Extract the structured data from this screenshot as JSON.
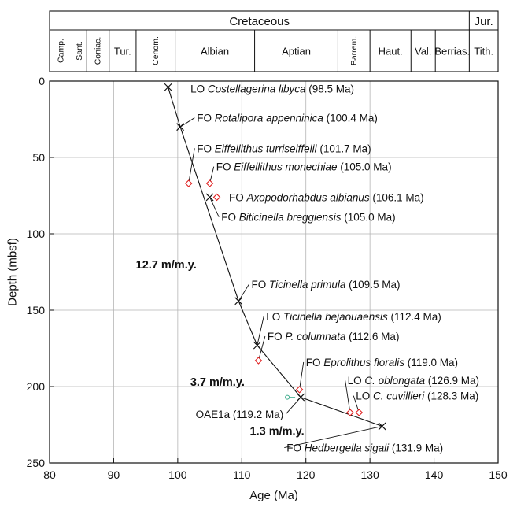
{
  "chart_data": {
    "type": "scatter",
    "xlabel": "Age (Ma)",
    "ylabel": "Depth (mbsf)",
    "xlim": [
      80,
      150
    ],
    "ylim": [
      0,
      250
    ],
    "y_inverted": true,
    "grid": true,
    "xticks": [
      80,
      90,
      100,
      110,
      120,
      130,
      140,
      150
    ],
    "yticks": [
      0,
      50,
      100,
      150,
      200,
      250
    ],
    "stratigraphy": {
      "periods": [
        {
          "label": "Cretaceous",
          "from": 80,
          "to": 145.5
        },
        {
          "label": "Jur.",
          "from": 145.5,
          "to": 150
        }
      ],
      "stages": [
        {
          "label": "Camp.",
          "from": 80,
          "to": 83.5,
          "vertical": true
        },
        {
          "label": "Sant.",
          "from": 83.5,
          "to": 85.8,
          "vertical": true
        },
        {
          "label": "Coniac.",
          "from": 85.8,
          "to": 89.3,
          "vertical": true
        },
        {
          "label": "Tur.",
          "from": 89.3,
          "to": 93.5,
          "vertical": false
        },
        {
          "label": "Cenom.",
          "from": 93.5,
          "to": 99.6,
          "vertical": true
        },
        {
          "label": "Albian",
          "from": 99.6,
          "to": 112,
          "vertical": false
        },
        {
          "label": "Aptian",
          "from": 112,
          "to": 125,
          "vertical": false
        },
        {
          "label": "Barrem.",
          "from": 125,
          "to": 130,
          "vertical": true
        },
        {
          "label": "Haut.",
          "from": 130,
          "to": 136.4,
          "vertical": false
        },
        {
          "label": "Val.",
          "from": 136.4,
          "to": 140.2,
          "vertical": false
        },
        {
          "label": "Berrias.",
          "from": 140.2,
          "to": 145.5,
          "vertical": false
        },
        {
          "label": "Tith.",
          "from": 145.5,
          "to": 150,
          "vertical": false
        }
      ]
    },
    "age_depth_line": [
      {
        "x": 98.5,
        "y": 4
      },
      {
        "x": 100.4,
        "y": 30
      },
      {
        "x": 109.5,
        "y": 144
      },
      {
        "x": 112.4,
        "y": 173
      },
      {
        "x": 119.2,
        "y": 207
      },
      {
        "x": 131.9,
        "y": 226
      }
    ],
    "points": [
      {
        "marker": "cross",
        "color": "#111111",
        "x": 98.5,
        "y": 4,
        "prefix": "LO ",
        "name": "Costellagerina libyca",
        "suffix": " (98.5 Ma)",
        "lx": 102,
        "ly": 5,
        "leader": false
      },
      {
        "marker": "cross",
        "color": "#111111",
        "x": 100.4,
        "y": 30,
        "prefix": "FO ",
        "name": "Rotalipora appenninica",
        "suffix": " (100.4 Ma)",
        "lx": 103,
        "ly": 24,
        "leader": true
      },
      {
        "marker": "diamond",
        "color": "#e02020",
        "x": 101.7,
        "y": 67,
        "prefix": "FO ",
        "name": "Eiffellithus turriseiffelii",
        "suffix": " (101.7 Ma)",
        "lx": 103,
        "ly": 44,
        "leader": true
      },
      {
        "marker": "diamond",
        "color": "#e02020",
        "x": 105.0,
        "y": 67,
        "prefix": "FO ",
        "name": "Eiffellithus monechiae",
        "suffix": " (105.0 Ma)",
        "lx": 106,
        "ly": 56,
        "leader": true
      },
      {
        "marker": "diamond",
        "color": "#e02020",
        "x": 106.1,
        "y": 76,
        "prefix": "FO ",
        "name": "Axopodorhabdus albianus",
        "suffix": " (106.1 Ma)",
        "lx": 108,
        "ly": 76,
        "leader": false
      },
      {
        "marker": "cross",
        "color": "#111111",
        "x": 105.0,
        "y": 76,
        "prefix": "FO ",
        "name": "Biticinella breggiensis",
        "suffix": " (105.0 Ma)",
        "lx": 106.8,
        "ly": 89,
        "leader": true
      },
      {
        "marker": "cross",
        "color": "#111111",
        "x": 109.5,
        "y": 144,
        "prefix": "FO ",
        "name": "Ticinella primula",
        "suffix": " (109.5 Ma)",
        "lx": 111.5,
        "ly": 133,
        "leader": true
      },
      {
        "marker": "cross",
        "color": "#111111",
        "x": 112.4,
        "y": 173,
        "prefix": "LO ",
        "name": "Ticinella bejaouaensis",
        "suffix": " (112.4 Ma)",
        "lx": 113.8,
        "ly": 154,
        "leader": true
      },
      {
        "marker": "diamond",
        "color": "#e02020",
        "x": 112.6,
        "y": 183,
        "prefix": "FO ",
        "name": "P. columnata",
        "suffix": " (112.6 Ma)",
        "lx": 114,
        "ly": 167,
        "leader": true
      },
      {
        "marker": "diamond",
        "color": "#e02020",
        "x": 119.0,
        "y": 202,
        "prefix": "FO ",
        "name": "Eprolithus floralis",
        "suffix": " (119.0 Ma)",
        "lx": 120,
        "ly": 184,
        "leader": true
      },
      {
        "marker": "diamond",
        "color": "#e02020",
        "x": 126.9,
        "y": 217,
        "prefix": "LO ",
        "name": "C. oblongata",
        "suffix": " (126.9 Ma)",
        "lx": 126.5,
        "ly": 196,
        "leader": true
      },
      {
        "marker": "diamond",
        "color": "#e02020",
        "x": 128.3,
        "y": 217,
        "prefix": "LO ",
        "name": "C. cuvillieri",
        "suffix": " (128.3 Ma)",
        "lx": 127.8,
        "ly": 206,
        "leader": true
      },
      {
        "marker": "circle",
        "color": "#3aaa8a",
        "x": 117.1,
        "y": 207,
        "prefix": "",
        "name": "",
        "suffix": "",
        "lx": 0,
        "ly": 0,
        "leader": false
      },
      {
        "marker": "cross",
        "color": "#111111",
        "x": 119.2,
        "y": 207,
        "prefix": "",
        "name": "OAE1a",
        "suffix": " (119.2 Ma)",
        "lx": 116.5,
        "ly": 218,
        "leader": true,
        "plain": true,
        "anchor": "end"
      },
      {
        "marker": "cross",
        "color": "#111111",
        "x": 131.9,
        "y": 226,
        "prefix": "FO ",
        "name": "Hedbergella sigali",
        "suffix": " (131.9 Ma)",
        "lx": 117,
        "ly": 240,
        "leader": true
      }
    ],
    "rate_labels": [
      {
        "text": "12.7 m/m.y.",
        "x": 98.2,
        "y": 120
      },
      {
        "text": "3.7 m/m.y.",
        "x": 106.2,
        "y": 197
      },
      {
        "text": "1.3 m/m.y.",
        "x": 115.5,
        "y": 229
      }
    ]
  }
}
